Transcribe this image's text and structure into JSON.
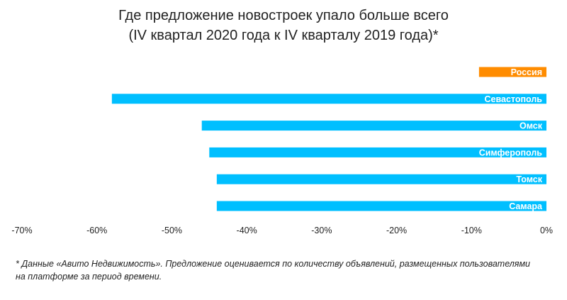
{
  "title": {
    "line1": "Где предложение новостроек упало больше всего",
    "line2": "(IV квартал 2020 года к  IV кварталу 2019 года)*"
  },
  "footnote": {
    "line1": "* Данные «Авито Недвижимость». Предложение оценивается по количеству объявлений, размещенных пользователями",
    "line2": "на платформе за период времени."
  },
  "colors": {
    "highlight": "#FF8C00",
    "bar": "#00BFFF"
  },
  "chart_data": {
    "type": "bar",
    "orientation": "horizontal",
    "categories": [
      "Россия",
      "Севастополь",
      "Омск",
      "Симферополь",
      "Томск",
      "Самара"
    ],
    "values": [
      -9,
      -58,
      -46,
      -45,
      -44,
      -44
    ],
    "unit": "%",
    "xlim": [
      -70,
      0
    ],
    "xticks": [
      -70,
      -60,
      -50,
      -40,
      -30,
      -20,
      -10,
      0
    ],
    "xtick_labels": [
      "-70%",
      "-60%",
      "-50%",
      "-40%",
      "-30%",
      "-20%",
      "-10%",
      "0%"
    ],
    "highlight_category": "Россия",
    "grid": false,
    "legend": "none"
  }
}
